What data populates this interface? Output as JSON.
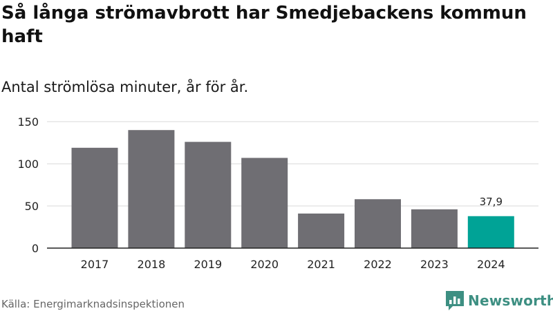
{
  "header": {
    "title": "Så långa strömavbrott har Smedjebackens kommun haft",
    "subtitle": "Antal strömlösa minuter, år för år."
  },
  "footer": {
    "source": "Källa: Energimarknadsinspektionen",
    "brand": "Newsworthy",
    "brand_icon": "newsworthy-logo-icon",
    "brand_color": "#3d8f82"
  },
  "chart_data": {
    "type": "bar",
    "categories": [
      "2017",
      "2018",
      "2019",
      "2020",
      "2021",
      "2022",
      "2023",
      "2024"
    ],
    "values": [
      119,
      140,
      126,
      107,
      41,
      58,
      46,
      37.9
    ],
    "yticks": [
      0,
      50,
      100,
      150
    ],
    "ylim": [
      0,
      150
    ],
    "grid": true,
    "bar_color": "#6f6e73",
    "highlight_color": "#00a396",
    "highlight_index": 7,
    "data_labels": [
      {
        "index": 7,
        "text": "37,9"
      }
    ]
  }
}
